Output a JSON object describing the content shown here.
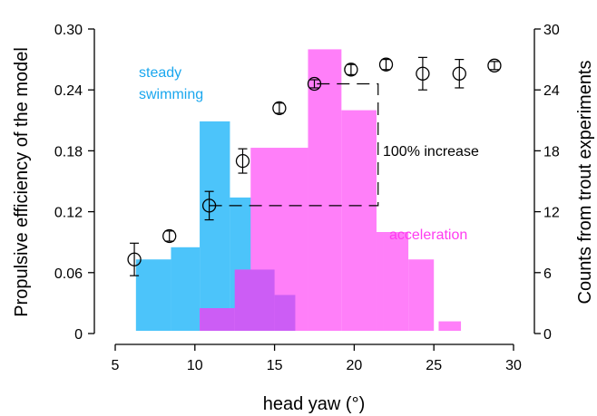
{
  "chart_data": {
    "type": "bar",
    "xlabel": "head yaw (°)",
    "ylabel": "Propulsive efficiency of the model",
    "y2label": "Counts from trout experiments",
    "xlim": [
      5,
      30
    ],
    "xticks": [
      5,
      10,
      15,
      20,
      25,
      30
    ],
    "ylim": [
      0,
      0.3
    ],
    "yticks": [
      0,
      0.06,
      0.12,
      0.18,
      0.24,
      0.3
    ],
    "ytick_labels": [
      "0",
      "0.06",
      "0.12",
      "0.18",
      "0.24",
      "0.30"
    ],
    "y2lim": [
      0,
      30
    ],
    "y2ticks": [
      0,
      6,
      12,
      18,
      24,
      30
    ],
    "y2tick_labels": [
      "0",
      "6",
      "12",
      "18",
      "24",
      "30"
    ],
    "grid": false,
    "colors": {
      "steady": "#4cc4fa",
      "acceleration": "#ff7ff9",
      "overlap": "#cc5df5",
      "points": "#000000",
      "annotation_steady": "#1aa7ee",
      "annotation_accel": "#ff3cf0"
    },
    "annotations": {
      "steady_line1": "steady",
      "steady_line2": "swimming",
      "acceleration": "acceleration",
      "increase": "100% increase"
    },
    "series": [
      {
        "kind": "histogram",
        "axis": "right",
        "bins": [
          {
            "x0": 6.3,
            "x1": 8.5,
            "count": 7.3
          },
          {
            "x0": 8.5,
            "x1": 10.3,
            "count": 8.5
          },
          {
            "x0": 10.3,
            "x1": 12.2,
            "count": 20.9
          },
          {
            "x0": 12.2,
            "x1": 13.7,
            "count": 13.4
          }
        ]
      },
      {
        "kind": "histogram",
        "axis": "right",
        "bins": [
          {
            "x0": 10.3,
            "x1": 12.8,
            "count": 2.5
          },
          {
            "x0": 12.8,
            "x1": 13.5,
            "count": 6.3
          },
          {
            "x0": 13.5,
            "x1": 17.1,
            "count": 18.3
          },
          {
            "x0": 17.1,
            "x1": 19.2,
            "count": 28.0
          },
          {
            "x0": 19.2,
            "x1": 21.4,
            "count": 22.0
          },
          {
            "x0": 21.4,
            "x1": 21.8,
            "count": 10.0
          },
          {
            "x0": 21.8,
            "x1": 23.4,
            "count": 10.0
          },
          {
            "x0": 23.4,
            "x1": 25.0,
            "count": 7.3
          },
          {
            "x0": 25.3,
            "x1": 26.7,
            "count": 1.2
          }
        ]
      },
      {
        "kind": "overlap",
        "axis": "right",
        "bins": [
          {
            "x0": 10.3,
            "x1": 12.5,
            "count": 2.5
          },
          {
            "x0": 12.5,
            "x1": 15.0,
            "count": 6.3
          },
          {
            "x0": 15.0,
            "x1": 16.3,
            "count": 3.8
          }
        ]
      },
      {
        "kind": "points",
        "axis": "left",
        "x": [
          6.2,
          8.4,
          10.9,
          13.0,
          15.3,
          17.5,
          19.8,
          22.0,
          24.3,
          26.6,
          28.8
        ],
        "y": [
          0.073,
          0.096,
          0.126,
          0.17,
          0.222,
          0.246,
          0.26,
          0.265,
          0.256,
          0.256,
          0.264
        ],
        "err": [
          0.016,
          0.005,
          0.014,
          0.012,
          0.005,
          0.004,
          0.005,
          0.005,
          0.016,
          0.014,
          0.004
        ]
      }
    ],
    "bracket": {
      "x_left": 10.9,
      "x_right": 21.5,
      "y_low": 0.126,
      "y_high": 0.246
    }
  }
}
